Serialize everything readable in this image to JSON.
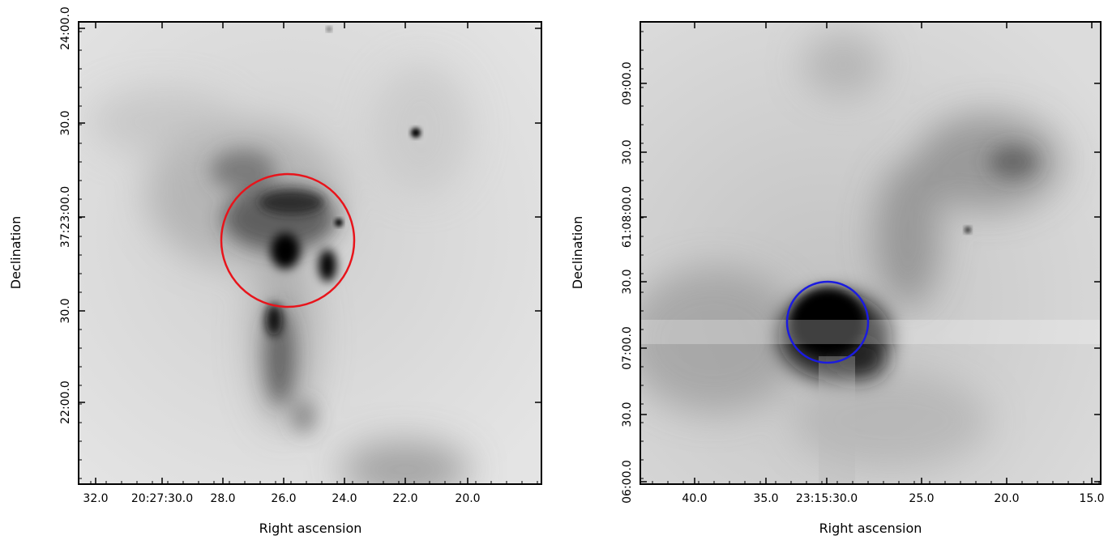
{
  "panels": [
    {
      "id": "left",
      "xlabel": "Right ascension",
      "ylabel": "Declination",
      "xticks": [
        "32.0",
        "20:27:30.0",
        "28.0",
        "26.0",
        "24.0",
        "22.0",
        "20.0"
      ],
      "yticks": [
        "24:00.0",
        "30.0",
        "37:23:00.0",
        "30.0",
        "22:00.0"
      ],
      "circle_color": "#e8141b"
    },
    {
      "id": "right",
      "xlabel": "Right ascension",
      "ylabel": "Declination",
      "xticks": [
        "40.0",
        "35.0",
        "23:15:30.0",
        "25.0",
        "20.0",
        "15.0"
      ],
      "yticks": [
        "09:00.0",
        "30.0",
        "61:08:00.0",
        "30.0",
        "07:00.0",
        "30.0",
        "06:00.0"
      ],
      "circle_color": "#1b1be0"
    }
  ]
}
